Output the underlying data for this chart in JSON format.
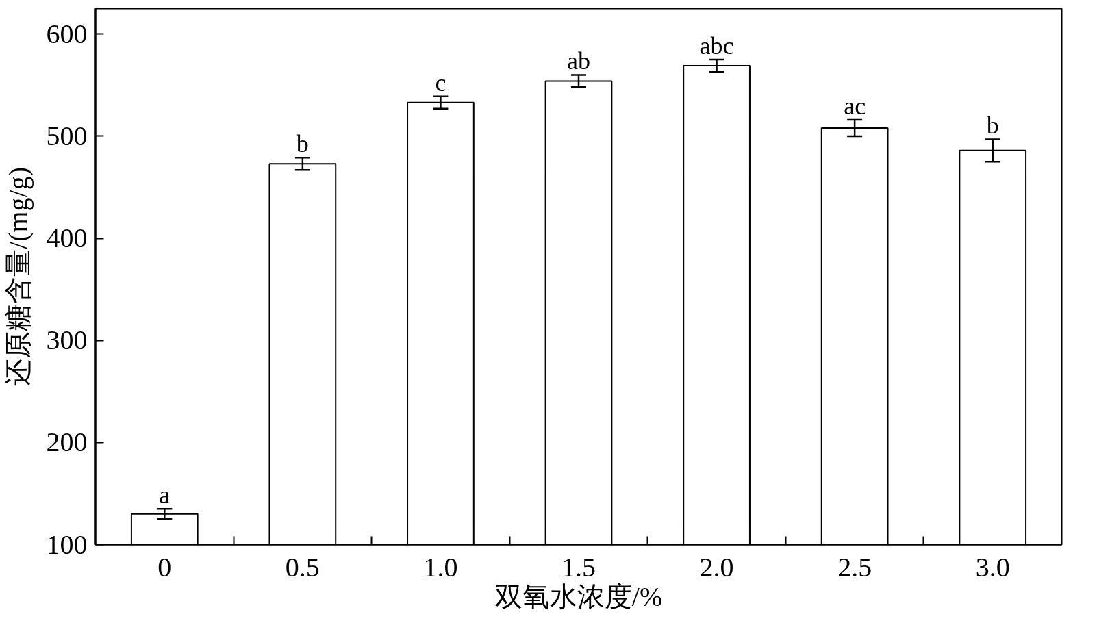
{
  "chart_data": {
    "type": "bar",
    "xlabel": "双氧水浓度/%",
    "ylabel": "还原糖含量/(mg/g)",
    "categories": [
      "0",
      "0.5",
      "1.0",
      "1.5",
      "2.0",
      "2.5",
      "3.0"
    ],
    "values": [
      130,
      473,
      533,
      554,
      569,
      508,
      486
    ],
    "errors": [
      5,
      6,
      6,
      6,
      6,
      8,
      11
    ],
    "color": "#ffffff",
    "ylim": [
      100,
      625
    ],
    "yticks": [
      100,
      200,
      300,
      400,
      500,
      600
    ],
    "grid": false,
    "annotations": [
      {
        "text": "a",
        "x": "0",
        "y": 135
      },
      {
        "text": "b",
        "x": "0.5",
        "y": 479
      },
      {
        "text": "c",
        "x": "1.0",
        "y": 539
      },
      {
        "text": "ab",
        "x": "1.5",
        "y": 560
      },
      {
        "text": "abc",
        "x": "2.0",
        "y": 575
      },
      {
        "text": "ac",
        "x": "2.5",
        "y": 516
      },
      {
        "text": "b",
        "x": "3.0",
        "y": 497
      }
    ]
  }
}
